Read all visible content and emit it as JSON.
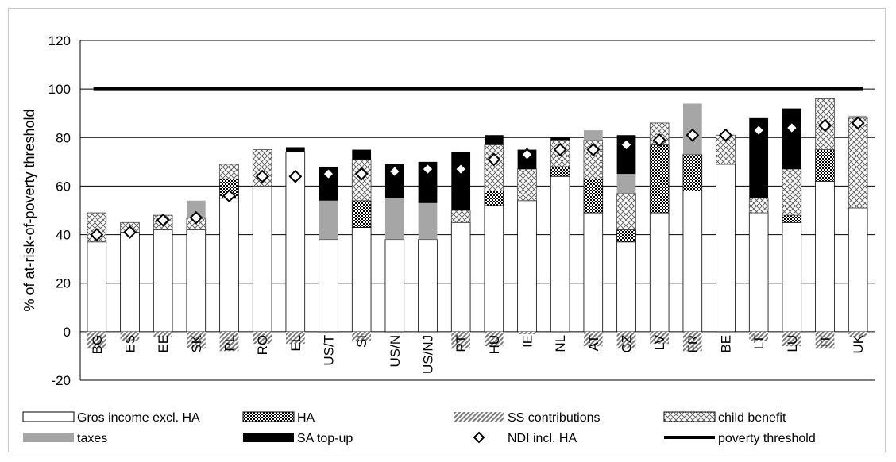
{
  "chart_data": {
    "type": "bar",
    "stacked": true,
    "title": "",
    "xlabel": "",
    "ylabel": "% of at-risk-of-poverty threshold",
    "ylim": [
      -20,
      120
    ],
    "yticks": [
      -20,
      0,
      20,
      40,
      60,
      80,
      100,
      120
    ],
    "grid": true,
    "legend_position": "bottom",
    "categories": [
      "BG",
      "ES",
      "EE",
      "SK",
      "PL",
      "RO",
      "EL",
      "US/T",
      "SI",
      "US/N",
      "US/NJ",
      "PT",
      "HU",
      "IE",
      "NL",
      "AT",
      "CZ",
      "LV",
      "FR",
      "BE",
      "LT",
      "LU",
      "IT",
      "UK"
    ],
    "series": [
      {
        "name": "Gros income excl. HA",
        "kind": "bar",
        "pattern": "white",
        "values": [
          37,
          41,
          42,
          42,
          55,
          60,
          74,
          38,
          43,
          38,
          38,
          45,
          52,
          54,
          64,
          49,
          37,
          49,
          58,
          69,
          49,
          45,
          62,
          51
        ]
      },
      {
        "name": "HA",
        "kind": "bar",
        "pattern": "checker",
        "values": [
          0,
          0,
          0,
          0,
          8,
          0,
          0,
          0,
          11,
          0,
          0,
          0,
          6,
          0,
          4,
          14,
          5,
          28,
          15,
          0,
          0,
          3,
          13,
          0
        ]
      },
      {
        "name": "SS contributions",
        "kind": "bar",
        "pattern": "diagonal",
        "values": [
          -7,
          -4,
          -2,
          -7,
          -8,
          -5,
          -5,
          0,
          -4,
          0,
          0,
          -7,
          -6,
          -1,
          0,
          -6,
          -7,
          -5,
          -8,
          0,
          -4,
          -6,
          -7,
          -2
        ]
      },
      {
        "name": "child benefit",
        "kind": "bar",
        "pattern": "crosshatch",
        "values": [
          12,
          4,
          6,
          5,
          6,
          15,
          0,
          0,
          17,
          0,
          0,
          5,
          19,
          13,
          11,
          16,
          15,
          9,
          0,
          12,
          6,
          19,
          21,
          37
        ]
      },
      {
        "name": "taxes",
        "kind": "bar",
        "pattern": "gray",
        "values": [
          0,
          0,
          0,
          7,
          0,
          0,
          0,
          16,
          0,
          17,
          15,
          0,
          0,
          0,
          0,
          4,
          8,
          0,
          21,
          0,
          0,
          0,
          0,
          1
        ]
      },
      {
        "name": "SA top-up",
        "kind": "bar",
        "pattern": "black",
        "values": [
          0,
          0,
          0,
          0,
          0,
          0,
          2,
          14,
          4,
          14,
          17,
          24,
          4,
          8,
          1,
          0,
          16,
          0,
          0,
          0,
          33,
          25,
          0,
          0
        ]
      },
      {
        "name": "NDI incl. HA",
        "kind": "marker",
        "values": [
          40,
          41,
          46,
          47,
          56,
          64,
          64,
          65,
          65,
          66,
          67,
          67,
          71,
          73,
          75,
          75,
          77,
          79,
          81,
          81,
          83,
          84,
          85,
          86
        ]
      },
      {
        "name": "poverty threshold",
        "kind": "line",
        "value": 100
      }
    ]
  }
}
